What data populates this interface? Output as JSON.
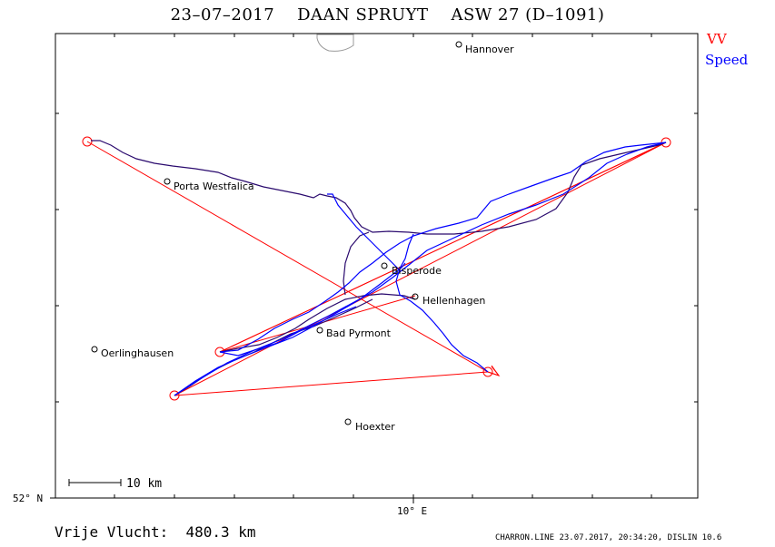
{
  "title": "23–07–2017    DAAN SPRUYT    ASW 27 (D–1091)",
  "legend": {
    "vv_label": "VV",
    "vv_color": "#ff0000",
    "speed_label": "Speed",
    "speed_color": "#0000ff"
  },
  "axes": {
    "lat_label": "52° N",
    "lon_label": "10° E"
  },
  "scale": {
    "label": "10  km"
  },
  "cities": [
    {
      "name": "Hannover"
    },
    {
      "name": "Porta Westfalica"
    },
    {
      "name": "Bisperode"
    },
    {
      "name": "Hellenhagen"
    },
    {
      "name": "Bad Pyrmont"
    },
    {
      "name": "Oerlinghausen"
    },
    {
      "name": "Hoexter"
    }
  ],
  "distance": "Vrije Vlucht:  480.3 km",
  "footer": "CHARRON.LINE 23.07.2017, 20:34:20, DISLIN 10.6",
  "colors": {
    "task_line": "#ff0000",
    "track_climb": "#0000ff",
    "track_glide": "#2a0a6e",
    "frame": "#000000"
  }
}
